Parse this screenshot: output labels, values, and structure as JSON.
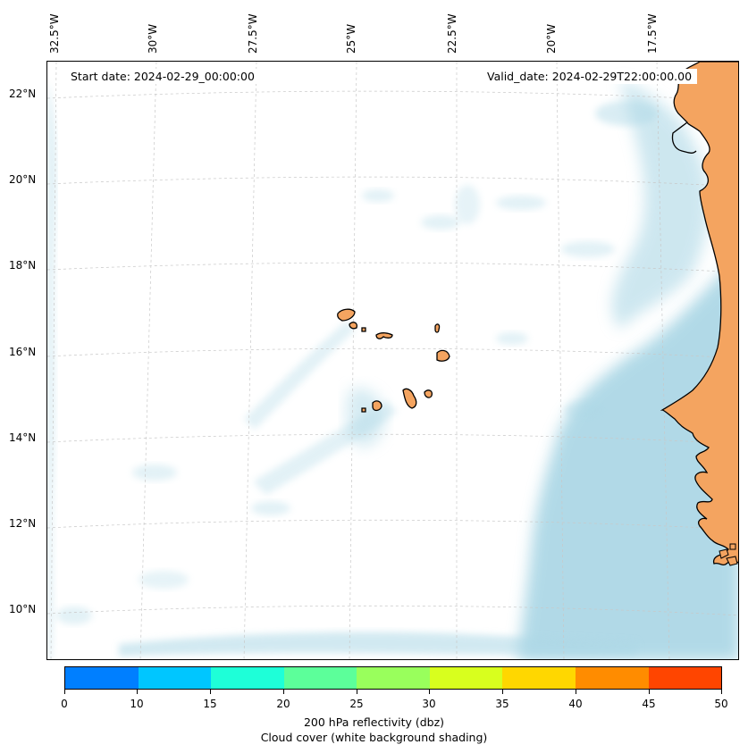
{
  "map": {
    "info": {
      "start_date": "Start date: 2024-02-29_00:00:00",
      "valid_date": "Valid_date: 2024-02-29T22:00:00.00"
    },
    "longitude_labels": [
      "32.5°W",
      "30°W",
      "27.5°W",
      "25°W",
      "22.5°W",
      "20°W",
      "17.5°W"
    ],
    "latitude_labels": [
      "22°N",
      "20°N",
      "18°N",
      "16°N",
      "14°N",
      "12°N",
      "10°N"
    ],
    "colors": {
      "cloud": "#add8e6",
      "land": "#f4a460",
      "coast": "#000000",
      "grid": "#c8c8c8"
    }
  },
  "colorbar": {
    "title_line1": "200 hPa reflectivity (dbz)",
    "title_line2": "Cloud cover (white background shading)",
    "ticks": [
      "0",
      "10",
      "15",
      "20",
      "25",
      "30",
      "35",
      "40",
      "45",
      "50"
    ],
    "colors": [
      "#007fff",
      "#00c6ff",
      "#1effd8",
      "#5cff9a",
      "#99ff5c",
      "#d8ff1e",
      "#ffd700",
      "#ff8c00",
      "#ff4500"
    ]
  }
}
